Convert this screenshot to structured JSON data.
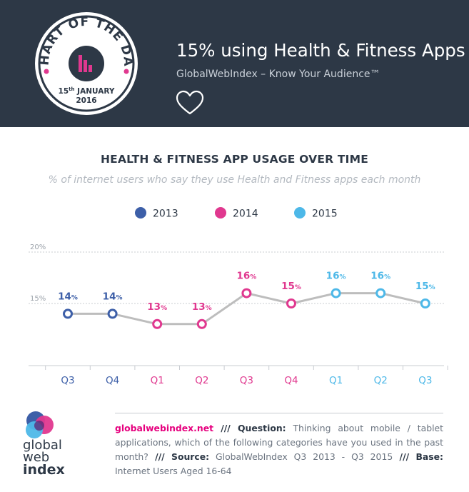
{
  "header": {
    "badge_top_text": "CHART OF THE DAY",
    "badge_day": "15",
    "badge_day_suffix": "th",
    "badge_month": "JANUARY",
    "badge_year": "2016",
    "title": "15% using Health & Fitness Apps",
    "subtitle": "GlobalWebIndex – Know Your Audience™",
    "heart_icon": "heart-outline-icon"
  },
  "colors": {
    "header_bg": "#2d3846",
    "series_2013": "#3d5fa8",
    "series_2014": "#e0388f",
    "series_2015": "#4db8e8",
    "line": "#bdbdbd"
  },
  "chart_data": {
    "type": "line",
    "title": "HEALTH & FITNESS APP USAGE OVER TIME",
    "subtitle": "% of internet users who say they use Health and Fitness apps each month",
    "ylim": [
      10,
      20
    ],
    "yticks": [
      "20%",
      "15%"
    ],
    "grid": true,
    "legend_position": "top",
    "categories": [
      "Q3",
      "Q4",
      "Q1",
      "Q2",
      "Q3",
      "Q4",
      "Q1",
      "Q2",
      "Q3"
    ],
    "series": [
      {
        "name": "2013",
        "color": "#3d5fa8",
        "points": [
          {
            "index": 0,
            "value": 14
          },
          {
            "index": 1,
            "value": 14
          }
        ]
      },
      {
        "name": "2014",
        "color": "#e0388f",
        "points": [
          {
            "index": 2,
            "value": 13
          },
          {
            "index": 3,
            "value": 13
          },
          {
            "index": 4,
            "value": 16
          },
          {
            "index": 5,
            "value": 15
          }
        ]
      },
      {
        "name": "2015",
        "color": "#4db8e8",
        "points": [
          {
            "index": 6,
            "value": 16
          },
          {
            "index": 7,
            "value": 16
          },
          {
            "index": 8,
            "value": 15
          }
        ]
      }
    ]
  },
  "footer": {
    "logo_line1": "global",
    "logo_line2": "web",
    "logo_line3": "index",
    "site": "globalwebindex.net",
    "sep1": " /// ",
    "question_label": "Question:",
    "question_text": " Thinking about mobile / tablet applications, which of the following categories have you used in the past month?",
    "sep2": " /// ",
    "source_label": "Source:",
    "source_text": " GlobalWebIndex Q3 2013 - Q3 2015",
    "sep3": " /// ",
    "base_label": "Base:",
    "base_text": " Internet Users Aged 16-64"
  }
}
